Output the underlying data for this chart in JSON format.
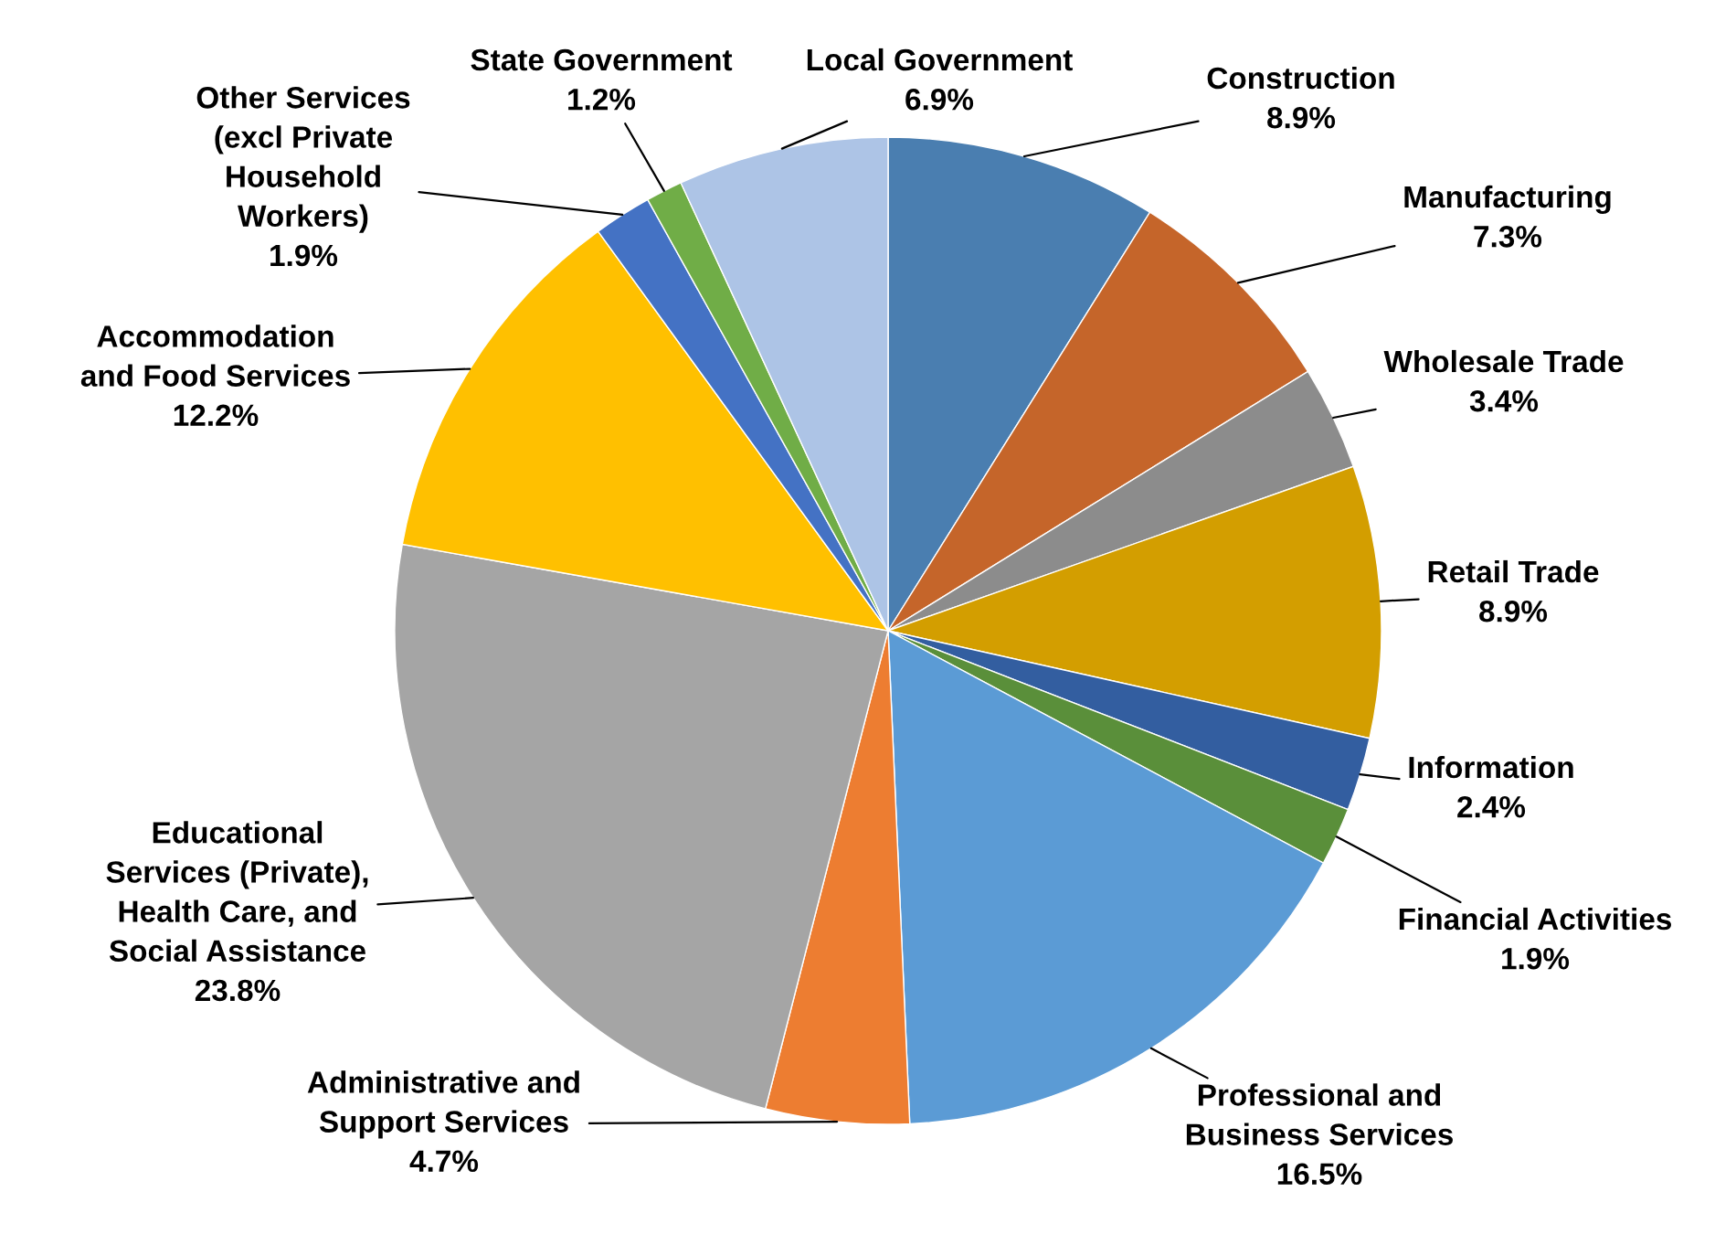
{
  "chart_data": {
    "type": "pie",
    "categories": [
      "Construction",
      "Manufacturing",
      "Wholesale Trade",
      "Retail Trade",
      "Information",
      "Financial Activities",
      "Professional and\nBusiness Services",
      "Administrative and\nSupport Services",
      "Educational\nServices (Private),\nHealth Care, and\nSocial Assistance",
      "Accommodation\nand Food Services",
      "Other Services\n(excl Private\nHousehold\nWorkers)",
      "State Government",
      "Local Government"
    ],
    "values": [
      8.9,
      7.3,
      3.4,
      8.9,
      2.4,
      1.9,
      16.5,
      4.7,
      23.8,
      12.2,
      1.9,
      1.2,
      6.9
    ],
    "value_labels": [
      "8.9%",
      "7.3%",
      "3.4%",
      "8.9%",
      "2.4%",
      "1.9%",
      "16.5%",
      "4.7%",
      "23.8%",
      "12.2%",
      "1.9%",
      "1.2%",
      "6.9%"
    ],
    "colors": [
      "#4a7eb0",
      "#c5652a",
      "#8c8c8c",
      "#d39e00",
      "#335ea0",
      "#5a8f3a",
      "#5b9bd5",
      "#ed7d31",
      "#a5a5a5",
      "#ffc000",
      "#4472c4",
      "#70ad47",
      "#adc4e6"
    ],
    "legend": false
  }
}
